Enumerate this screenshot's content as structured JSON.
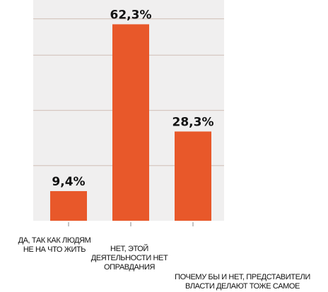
{
  "chart_data": {
    "type": "bar",
    "categories": [
      [
        "ДА, ТАК КАК ЛЮДЯМ",
        "НЕ НА ЧТО ЖИТЬ"
      ],
      [
        "НЕТ, ЭТОЙ",
        "ДЕЯТЕЛЬНОСТИ НЕТ",
        "ОПРАВДАНИЯ"
      ],
      [
        "ПОЧЕМУ БЫ И НЕТ, ПРЕДСТАВИТЕЛИ",
        "ВЛАСТИ ДЕЛАЮТ ТОЖЕ САМОЕ"
      ]
    ],
    "values": [
      9.4,
      62.3,
      28.3
    ],
    "value_labels": [
      "9,4%",
      "62,3%",
      "28,3%"
    ],
    "ylim": [
      0,
      70
    ],
    "grid": true,
    "colors": {
      "bar": "#e8582a",
      "grid": "#d6c7c0",
      "plot_bg": "#f0efef"
    }
  }
}
